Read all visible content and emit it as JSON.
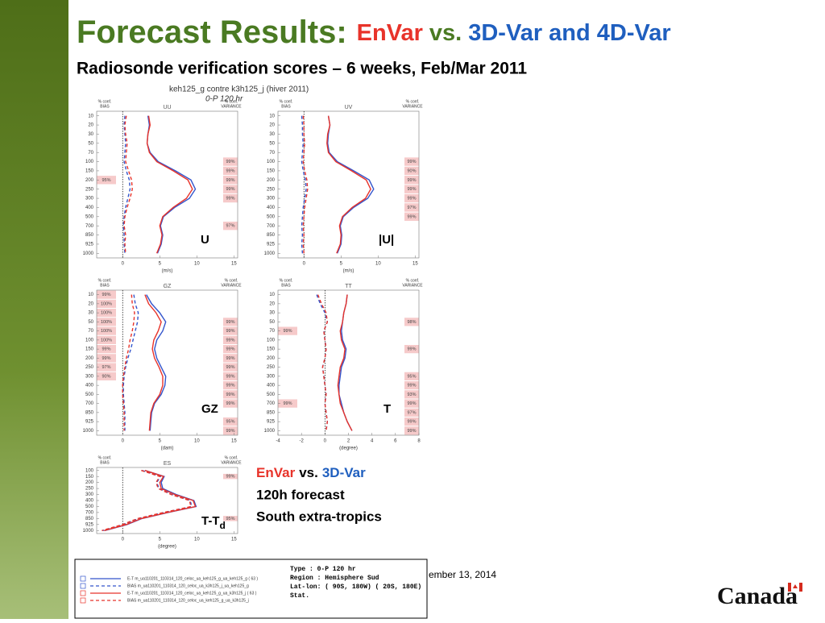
{
  "slide": {
    "title": "Forecast Results:",
    "title_a": "EnVar",
    "title_vs": "vs.",
    "title_b": "3D-Var and 4D-Var",
    "subtitle": "Radiosonde verification scores – 6 weeks, Feb/Mar 2011",
    "plot_header": "keh125_g contre k3h125_j (hiver 2011)",
    "plot_subheader": "0-P 120 hr",
    "labels": [
      "U",
      "|U|",
      "GZ",
      "T"
    ],
    "td_label": "T-T",
    "td_sub": "d",
    "note_a": "EnVar",
    "note_vs": "vs.",
    "note_b": "3D-Var",
    "note_2": "120h forecast",
    "note_3": "South extra-tropics",
    "date": "ember 13, 2014",
    "logo": "Canada",
    "info": [
      "Type   : 0-P 120 hr",
      "Region : Hemisphere Sud",
      "Lat-lon: ( 90S, 180W)  ( 20S, 180E)",
      "Stat."
    ]
  },
  "chart_data": [
    {
      "type": "line",
      "title": "UU",
      "x_label": "(m/s)",
      "left_header": [
        "% conf.",
        "BIAS"
      ],
      "right_header": [
        "% conf.",
        "VARIANCE"
      ],
      "categories": [
        10,
        20,
        30,
        50,
        70,
        100,
        150,
        200,
        250,
        300,
        400,
        500,
        700,
        850,
        925,
        1000
      ],
      "xlim": [
        -3.5,
        15.5
      ],
      "xticks": [
        0,
        5,
        10,
        15
      ],
      "left_conf": [
        null,
        null,
        null,
        null,
        null,
        null,
        null,
        "95%",
        null,
        null,
        null,
        null,
        null,
        null,
        null,
        null
      ],
      "right_conf": [
        null,
        null,
        null,
        null,
        null,
        "99%",
        "99%",
        "99%",
        "99%",
        "99%",
        null,
        null,
        "97%",
        null,
        null,
        null
      ],
      "series": [
        {
          "name": "E-T m_ua110201_110314_120_celoc_ua_keh125_g_ua_keh125_g ( 63 )",
          "color": "#3355cc",
          "dashed": false,
          "values": [
            3.4,
            3.6,
            3.4,
            3.3,
            3.7,
            4.8,
            7.1,
            9.2,
            9.8,
            9.0,
            7.0,
            5.5,
            5.1,
            5.4,
            5.2,
            4.7
          ]
        },
        {
          "name": "BIAS m_ua110201_110314_120_celoc_ua_k3h125_j_ua_keh125_g",
          "color": "#3355cc",
          "dashed": true,
          "values": [
            0.3,
            0.2,
            0.3,
            0.4,
            0.3,
            0.2,
            0.5,
            0.9,
            1.0,
            0.7,
            0.4,
            0.2,
            0.1,
            0.2,
            0.2,
            0.3
          ]
        },
        {
          "name": "E-T m_ua110201_110314_120_celoc_ua_keh125_g_ua_k3h125_j ( 63 )",
          "color": "#e8332a",
          "dashed": false,
          "values": [
            3.5,
            3.7,
            3.4,
            3.3,
            3.6,
            4.6,
            6.8,
            8.8,
            9.4,
            8.6,
            6.8,
            5.4,
            5.0,
            5.3,
            5.1,
            4.6
          ]
        },
        {
          "name": "BIAS m_ua110201_110314_120_celoc_ua_keh125_g_ua_k3h125_j",
          "color": "#e8332a",
          "dashed": true,
          "values": [
            0.5,
            0.3,
            0.4,
            0.6,
            0.5,
            0.4,
            0.8,
            1.2,
            1.3,
            1.0,
            0.6,
            0.3,
            0.2,
            0.4,
            0.3,
            0.4
          ]
        }
      ]
    },
    {
      "type": "line",
      "title": "UV",
      "x_label": "(m/s)",
      "left_header": [
        "% conf.",
        "BIAS"
      ],
      "right_header": [
        "% conf.",
        "VARIANCE"
      ],
      "categories": [
        10,
        20,
        30,
        50,
        70,
        100,
        150,
        200,
        250,
        300,
        400,
        500,
        700,
        850,
        925,
        1000
      ],
      "xlim": [
        -3.5,
        15.5
      ],
      "xticks": [
        0,
        5,
        10,
        15
      ],
      "left_conf": [
        null,
        null,
        null,
        null,
        null,
        null,
        null,
        null,
        null,
        null,
        null,
        null,
        null,
        null,
        null,
        null
      ],
      "right_conf": [
        null,
        null,
        null,
        null,
        null,
        "99%",
        "90%",
        "99%",
        "99%",
        "99%",
        "97%",
        "99%",
        null,
        null,
        null,
        null
      ],
      "series": [
        {
          "color": "#3355cc",
          "dashed": false,
          "values": [
            3.3,
            3.5,
            3.3,
            3.2,
            3.4,
            4.5,
            6.7,
            8.8,
            9.4,
            8.6,
            6.7,
            5.3,
            4.9,
            5.1,
            5.0,
            4.5
          ]
        },
        {
          "color": "#3355cc",
          "dashed": true,
          "values": [
            -0.3,
            -0.2,
            -0.2,
            -0.1,
            -0.2,
            -0.3,
            -0.1,
            0.2,
            0.3,
            0.1,
            -0.1,
            -0.2,
            -0.3,
            -0.2,
            -0.3,
            -0.2
          ]
        },
        {
          "color": "#e8332a",
          "dashed": false,
          "values": [
            3.3,
            3.5,
            3.2,
            3.1,
            3.3,
            4.3,
            6.4,
            8.4,
            9.0,
            8.3,
            6.5,
            5.2,
            4.8,
            5.0,
            4.9,
            4.4
          ]
        },
        {
          "color": "#e8332a",
          "dashed": true,
          "values": [
            -0.1,
            0.0,
            0.0,
            0.1,
            0.0,
            -0.1,
            0.1,
            0.4,
            0.5,
            0.3,
            0.1,
            0.0,
            -0.1,
            0.0,
            -0.1,
            0.0
          ]
        }
      ]
    },
    {
      "type": "line",
      "title": "GZ",
      "x_label": "(dam)",
      "left_header": [
        "% conf.",
        "BIAS"
      ],
      "right_header": [
        "% conf.",
        "VARIANCE"
      ],
      "categories": [
        10,
        20,
        30,
        50,
        70,
        100,
        150,
        200,
        250,
        300,
        400,
        500,
        700,
        850,
        925,
        1000
      ],
      "xlim": [
        -3.5,
        15.5
      ],
      "xticks": [
        0,
        5,
        10,
        15
      ],
      "left_conf": [
        "99%",
        "100%",
        "100%",
        "100%",
        "100%",
        "100%",
        "99%",
        "99%",
        "97%",
        "90%",
        null,
        null,
        null,
        null,
        null,
        null
      ],
      "right_conf": [
        null,
        null,
        null,
        "99%",
        "99%",
        "99%",
        "99%",
        "99%",
        "99%",
        "99%",
        "99%",
        "99%",
        "99%",
        null,
        "95%",
        "99%"
      ],
      "series": [
        {
          "color": "#3355cc",
          "dashed": false,
          "values": [
            3.2,
            3.9,
            5.0,
            5.8,
            5.4,
            4.6,
            4.3,
            4.6,
            5.2,
            5.8,
            5.7,
            5.2,
            4.3,
            3.9,
            3.8,
            3.7
          ]
        },
        {
          "color": "#3355cc",
          "dashed": true,
          "values": [
            1.5,
            1.7,
            2.1,
            2.0,
            1.7,
            1.4,
            1.1,
            0.7,
            0.4,
            0.2,
            0.1,
            0.1,
            0.2,
            0.3,
            0.3,
            0.3
          ]
        },
        {
          "color": "#e8332a",
          "dashed": false,
          "values": [
            3.0,
            3.5,
            4.5,
            5.2,
            4.8,
            4.2,
            4.0,
            4.3,
            4.9,
            5.4,
            5.4,
            5.0,
            4.2,
            3.8,
            3.7,
            3.6
          ]
        },
        {
          "color": "#e8332a",
          "dashed": true,
          "values": [
            1.2,
            1.3,
            1.6,
            1.5,
            1.3,
            1.0,
            0.8,
            0.5,
            0.3,
            0.1,
            0.0,
            0.0,
            0.1,
            0.2,
            0.2,
            0.2
          ]
        }
      ]
    },
    {
      "type": "line",
      "title": "TT",
      "x_label": "(degree)",
      "left_header": [
        "% conf.",
        "BIAS"
      ],
      "right_header": [
        "% conf.",
        "VARIANCE"
      ],
      "categories": [
        10,
        20,
        30,
        50,
        70,
        100,
        150,
        200,
        250,
        300,
        400,
        500,
        700,
        850,
        925,
        1000
      ],
      "xlim": [
        -4,
        8
      ],
      "xticks": [
        -4,
        -2,
        0,
        2,
        4,
        6,
        8
      ],
      "left_conf": [
        null,
        null,
        null,
        null,
        "99%",
        null,
        null,
        null,
        null,
        null,
        null,
        null,
        "99%",
        null,
        null,
        null
      ],
      "right_conf": [
        null,
        null,
        null,
        "98%",
        null,
        null,
        "99%",
        null,
        null,
        "95%",
        "99%",
        "93%",
        "99%",
        "97%",
        "99%",
        "99%"
      ],
      "series": [
        {
          "color": "#3355cc",
          "dashed": false,
          "values": [
            1.9,
            1.8,
            1.6,
            1.5,
            1.4,
            1.5,
            1.8,
            1.7,
            1.4,
            1.3,
            1.2,
            1.2,
            1.4,
            1.6,
            1.9,
            2.3
          ]
        },
        {
          "color": "#3355cc",
          "dashed": true,
          "values": [
            -0.7,
            -0.4,
            0.0,
            0.2,
            -0.1,
            0.0,
            0.1,
            0.0,
            -0.2,
            -0.1,
            0.0,
            0.1,
            0.0,
            0.1,
            0.2,
            0.1
          ]
        },
        {
          "color": "#e8332a",
          "dashed": false,
          "values": [
            1.9,
            1.8,
            1.6,
            1.5,
            1.3,
            1.4,
            1.7,
            1.6,
            1.3,
            1.2,
            1.1,
            1.2,
            1.3,
            1.6,
            1.9,
            2.3
          ]
        },
        {
          "color": "#e8332a",
          "dashed": true,
          "values": [
            -0.6,
            -0.3,
            0.1,
            0.2,
            -0.1,
            0.0,
            0.1,
            0.0,
            -0.2,
            -0.1,
            0.0,
            0.1,
            0.0,
            0.1,
            0.2,
            0.1
          ]
        }
      ]
    },
    {
      "type": "line",
      "title": "ES",
      "x_label": "(degree)",
      "left_header": [
        "% conf.",
        "BIAS"
      ],
      "right_header": [
        "% conf.",
        "VARIANCE"
      ],
      "categories": [
        100,
        150,
        200,
        250,
        300,
        400,
        500,
        700,
        850,
        925,
        1000
      ],
      "xlim": [
        -3.5,
        15.5
      ],
      "xticks": [
        0,
        5,
        10,
        15
      ],
      "left_conf": [
        null,
        null,
        null,
        null,
        null,
        null,
        null,
        null,
        null,
        null,
        null
      ],
      "right_conf": [
        null,
        "99%",
        null,
        null,
        null,
        null,
        null,
        null,
        "95%",
        null,
        null
      ],
      "series": [
        {
          "color": "#3355cc",
          "dashed": false,
          "values": [
            3.0,
            5.6,
            5.2,
            5.4,
            7.2,
            9.6,
            9.9,
            6.1,
            2.6,
            0.6,
            -2.4
          ]
        },
        {
          "color": "#3355cc",
          "dashed": true,
          "values": [
            2.6,
            5.1,
            4.6,
            4.9,
            6.6,
            9.1,
            9.3,
            5.6,
            2.1,
            0.1,
            -2.7
          ]
        },
        {
          "color": "#e8332a",
          "dashed": false,
          "values": [
            3.0,
            5.5,
            5.0,
            5.2,
            7.0,
            9.5,
            9.8,
            6.0,
            2.5,
            0.5,
            -2.5
          ]
        },
        {
          "color": "#e8332a",
          "dashed": true,
          "values": [
            2.5,
            5.0,
            4.5,
            4.8,
            6.5,
            9.0,
            9.2,
            5.5,
            2.0,
            0.0,
            -2.8
          ]
        }
      ]
    }
  ]
}
